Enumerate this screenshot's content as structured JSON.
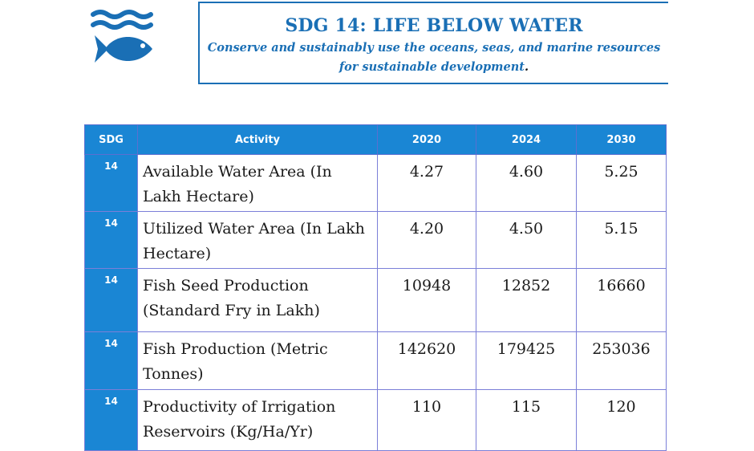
{
  "header": {
    "title": "SDG 14: LIFE BELOW WATER",
    "subtitle_line1": "Conserve and sustainably use the oceans, seas, and marine resources",
    "subtitle_line2": "for sustainable development",
    "subtitle_end": "."
  },
  "logo": {
    "icon": "fish-waves-icon",
    "color": "#1a6fb5"
  },
  "colors": {
    "accent": "#1a86d4",
    "banner": "#1a6fb5",
    "grid": "#7b7fd8"
  },
  "table": {
    "columns": [
      "SDG",
      "Activity",
      "2020",
      "2024",
      "2030"
    ],
    "rows": [
      {
        "sdg": "14",
        "activity": "Available Water Area (In Lakh Hectare)",
        "y2020": "4.27",
        "y2024": "4.60",
        "y2030": "5.25"
      },
      {
        "sdg": "14",
        "activity": "Utilized Water Area (In Lakh Hectare)",
        "y2020": "4.20",
        "y2024": "4.50",
        "y2030": "5.15"
      },
      {
        "sdg": "14",
        "activity": "Fish Seed Production (Standard Fry in Lakh)",
        "y2020": "10948",
        "y2024": "12852",
        "y2030": "16660"
      },
      {
        "sdg": "14",
        "activity": "Fish Production (Metric Tonnes)",
        "y2020": "142620",
        "y2024": "179425",
        "y2030": "253036"
      },
      {
        "sdg": "14",
        "activity": "Productivity of Irrigation Reservoirs (Kg/Ha/Yr)",
        "y2020": "110",
        "y2024": "115",
        "y2030": "120"
      }
    ]
  }
}
